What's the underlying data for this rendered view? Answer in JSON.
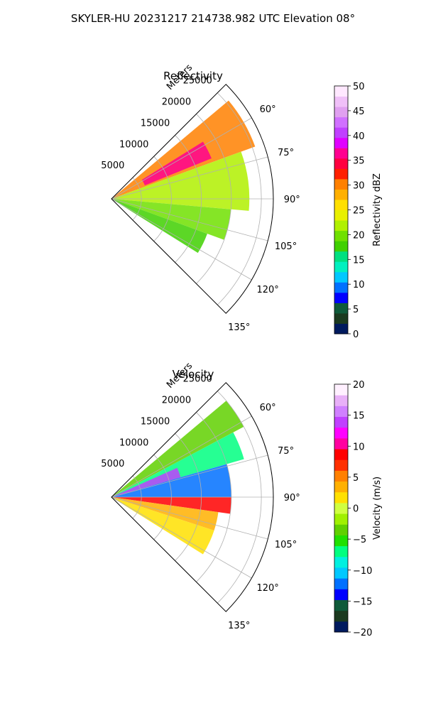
{
  "figure": {
    "suptitle": "SKYLER-HU  20231217  214738.982 UTC Elevation 08°"
  },
  "chart_data": [
    {
      "type": "heatmap",
      "title": "Reflectivity",
      "radial_axis_label": "Meters",
      "radial_ticks": [
        5000,
        10000,
        15000,
        20000,
        25000
      ],
      "radial_tick_labels": [
        "5000",
        "10000",
        "15000",
        "20000",
        "25000"
      ],
      "rlim": [
        0,
        27000
      ],
      "azimuth_range": [
        45,
        135
      ],
      "azimuth_ticks": [
        60,
        75,
        90,
        105,
        120,
        135
      ],
      "azimuth_tick_labels": [
        "60°",
        "75°",
        "90°",
        "105°",
        "120°",
        "135°"
      ],
      "grid": true,
      "colorbar": {
        "label": "Reflectivity dBZ",
        "range": [
          0,
          50
        ],
        "ticks": [
          0,
          5,
          10,
          15,
          20,
          25,
          30,
          35,
          40,
          45,
          50
        ],
        "tick_labels": [
          "0",
          "5",
          "10",
          "15",
          "20",
          "25",
          "30",
          "35",
          "40",
          "45",
          "50"
        ],
        "colors": [
          "#001a5e",
          "#1b3a1f",
          "#0f5a3a",
          "#0000ff",
          "#0070ff",
          "#00c8ff",
          "#00f0c0",
          "#00e080",
          "#40d000",
          "#70e000",
          "#b0f000",
          "#e8f000",
          "#ffe000",
          "#ffb000",
          "#ff8000",
          "#ff2000",
          "#ff0040",
          "#ff0090",
          "#e000ff",
          "#c040ff",
          "#d070ff",
          "#e0a0f0",
          "#f0c0f8",
          "#ffe8ff"
        ]
      },
      "echo_sectors": [
        {
          "az": [
            50,
            70
          ],
          "r": [
            0,
            25500
          ],
          "value": 30
        },
        {
          "az": [
            58,
            68
          ],
          "r": [
            6000,
            18000
          ],
          "value": 36
        },
        {
          "az": [
            70,
            95
          ],
          "r": [
            0,
            23000
          ],
          "value": 22
        },
        {
          "az": [
            95,
            110
          ],
          "r": [
            0,
            20000
          ],
          "value": 20
        },
        {
          "az": [
            110,
            122
          ],
          "r": [
            0,
            17000
          ],
          "value": 18
        }
      ]
    },
    {
      "type": "heatmap",
      "title": "Velocity",
      "radial_axis_label": "Meters",
      "radial_ticks": [
        5000,
        10000,
        15000,
        20000,
        25000
      ],
      "radial_tick_labels": [
        "5000",
        "10000",
        "15000",
        "20000",
        "25000"
      ],
      "rlim": [
        0,
        27000
      ],
      "azimuth_range": [
        45,
        135
      ],
      "azimuth_ticks": [
        60,
        75,
        90,
        105,
        120,
        135
      ],
      "azimuth_tick_labels": [
        "60°",
        "75°",
        "90°",
        "105°",
        "120°",
        "135°"
      ],
      "grid": true,
      "colorbar": {
        "label": "Velocity (m/s)",
        "range": [
          -20,
          20
        ],
        "ticks": [
          -20,
          -15,
          -10,
          -5,
          0,
          5,
          10,
          15,
          20
        ],
        "tick_labels": [
          "−20",
          "−15",
          "−10",
          "−5",
          "0",
          "5",
          "10",
          "15",
          "20"
        ],
        "colors": [
          "#001a5e",
          "#1b3a1f",
          "#0f5a3a",
          "#0000ff",
          "#0070ff",
          "#00c8ff",
          "#00f0e0",
          "#00ff80",
          "#20e000",
          "#60d000",
          "#a0f000",
          "#d0ff40",
          "#ffe000",
          "#ffb000",
          "#ff8000",
          "#ff3000",
          "#ff0000",
          "#ff00a0",
          "#ff00ff",
          "#c040ff",
          "#d080ff",
          "#e8b0f8",
          "#fff0ff"
        ]
      },
      "echo_sectors": [
        {
          "az": [
            50,
            62
          ],
          "r": [
            0,
            25000
          ],
          "value": -3
        },
        {
          "az": [
            62,
            74
          ],
          "r": [
            0,
            23000
          ],
          "value": -7
        },
        {
          "az": [
            74,
            90
          ],
          "r": [
            0,
            20000
          ],
          "value": -12
        },
        {
          "az": [
            66,
            74
          ],
          "r": [
            0,
            12000
          ],
          "value": 14
        },
        {
          "az": [
            90,
            98
          ],
          "r": [
            0,
            20000
          ],
          "value": 9
        },
        {
          "az": [
            98,
            108
          ],
          "r": [
            0,
            18000
          ],
          "value": 4
        },
        {
          "az": [
            108,
            122
          ],
          "r": [
            0,
            18000
          ],
          "value": 1
        }
      ]
    }
  ]
}
